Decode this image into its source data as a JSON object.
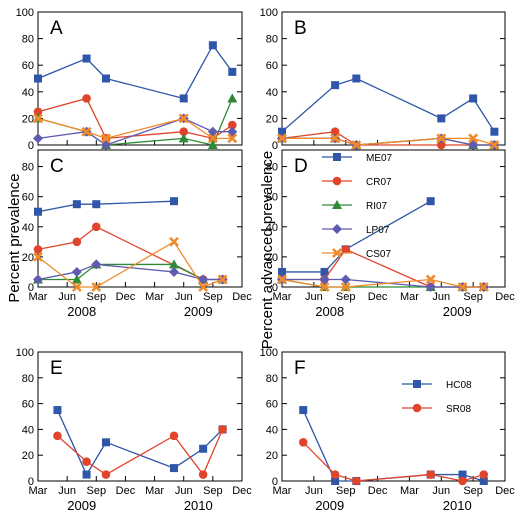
{
  "ylabels": {
    "left": "Percent prevalence",
    "right": "Percent advanced prevalence"
  },
  "colors": {
    "ME07": "#2f56a8",
    "CR07": "#e0452b",
    "RI07": "#2e8a35",
    "LP07": "#5e5bb0",
    "CS07": "#f08a2a",
    "HC08": "#2f56a8",
    "SR08": "#e0452b"
  },
  "chart_data": [
    {
      "panel": "A",
      "type": "line",
      "title": "A",
      "ylim": [
        0,
        100
      ],
      "yticks": [
        "0",
        "20",
        "40",
        "60",
        "80",
        "100"
      ],
      "xticks": [],
      "years": [],
      "series": [
        {
          "name": "ME07",
          "marker": "square",
          "points": [
            [
              "2007-03",
              50
            ],
            [
              "2007-08",
              65
            ],
            [
              "2007-10",
              50
            ],
            [
              "2008-06",
              35
            ],
            [
              "2008-09",
              75
            ],
            [
              "2008-11",
              55
            ]
          ]
        },
        {
          "name": "CR07",
          "marker": "circle",
          "points": [
            [
              "2007-03",
              25
            ],
            [
              "2007-08",
              35
            ],
            [
              "2007-10",
              5
            ],
            [
              "2008-06",
              10
            ],
            [
              "2008-09",
              5
            ],
            [
              "2008-11",
              15
            ]
          ]
        },
        {
          "name": "RI07",
          "marker": "triangle",
          "points": [
            [
              "2007-03",
              20
            ],
            [
              "2007-08",
              10
            ],
            [
              "2007-10",
              0
            ],
            [
              "2008-06",
              5
            ],
            [
              "2008-09",
              0
            ],
            [
              "2008-11",
              35
            ]
          ]
        },
        {
          "name": "LP07",
          "marker": "diamond",
          "points": [
            [
              "2007-03",
              5
            ],
            [
              "2007-08",
              10
            ],
            [
              "2007-10",
              0
            ],
            [
              "2008-06",
              20
            ],
            [
              "2008-09",
              10
            ],
            [
              "2008-11",
              10
            ]
          ]
        },
        {
          "name": "CS07",
          "marker": "cross",
          "points": [
            [
              "2007-03",
              20
            ],
            [
              "2007-08",
              10
            ],
            [
              "2007-10",
              5
            ],
            [
              "2008-06",
              20
            ],
            [
              "2008-09",
              5
            ],
            [
              "2008-11",
              5
            ]
          ]
        }
      ]
    },
    {
      "panel": "B",
      "type": "line",
      "title": "B",
      "ylim": [
        0,
        100
      ],
      "yticks": [
        "0",
        "20",
        "40",
        "60",
        "80",
        "100"
      ],
      "xticks": [],
      "years": [],
      "series": [
        {
          "name": "ME07",
          "marker": "square",
          "points": [
            [
              "2007-03",
              10
            ],
            [
              "2007-08",
              45
            ],
            [
              "2007-10",
              50
            ],
            [
              "2008-06",
              20
            ],
            [
              "2008-09",
              35
            ],
            [
              "2008-11",
              10
            ]
          ]
        },
        {
          "name": "CR07",
          "marker": "circle",
          "points": [
            [
              "2007-03",
              5
            ],
            [
              "2007-08",
              10
            ],
            [
              "2007-10",
              0
            ],
            [
              "2008-06",
              0
            ],
            [
              "2008-09",
              0
            ],
            [
              "2008-11",
              0
            ]
          ]
        },
        {
          "name": "RI07",
          "marker": "triangle",
          "points": [
            [
              "2007-03",
              5
            ],
            [
              "2007-08",
              5
            ],
            [
              "2007-10",
              0
            ],
            [
              "2008-06",
              5
            ],
            [
              "2008-09",
              0
            ],
            [
              "2008-11",
              0
            ]
          ]
        },
        {
          "name": "LP07",
          "marker": "diamond",
          "points": [
            [
              "2007-03",
              5
            ],
            [
              "2007-08",
              5
            ],
            [
              "2007-10",
              0
            ],
            [
              "2008-06",
              5
            ],
            [
              "2008-09",
              0
            ],
            [
              "2008-11",
              0
            ]
          ]
        },
        {
          "name": "CS07",
          "marker": "cross",
          "points": [
            [
              "2007-03",
              5
            ],
            [
              "2007-08",
              5
            ],
            [
              "2007-10",
              0
            ],
            [
              "2008-06",
              5
            ],
            [
              "2008-09",
              5
            ],
            [
              "2008-11",
              0
            ]
          ]
        }
      ]
    },
    {
      "panel": "C",
      "type": "line",
      "title": "C",
      "ylim": [
        0,
        100
      ],
      "yticks": [
        "0",
        "20",
        "40",
        "60",
        "80"
      ],
      "xticks": [
        "Mar",
        "Jun",
        "Sep",
        "Dec",
        "Mar",
        "Jun",
        "Sep",
        "Dec"
      ],
      "years": [
        "2008",
        "2009"
      ],
      "series": [
        {
          "name": "ME07",
          "marker": "square",
          "points": [
            [
              "2008-03",
              50
            ],
            [
              "2008-07",
              55
            ],
            [
              "2008-09",
              55
            ],
            [
              "2009-05",
              57
            ]
          ]
        },
        {
          "name": "CR07",
          "marker": "circle",
          "points": [
            [
              "2008-03",
              25
            ],
            [
              "2008-07",
              30
            ],
            [
              "2008-09",
              40
            ],
            [
              "2009-08",
              5
            ],
            [
              "2009-10",
              5
            ]
          ]
        },
        {
          "name": "RI07",
          "marker": "triangle",
          "points": [
            [
              "2008-03",
              5
            ],
            [
              "2008-07",
              5
            ],
            [
              "2008-09",
              15
            ],
            [
              "2009-05",
              15
            ],
            [
              "2009-08",
              5
            ],
            [
              "2009-10",
              5
            ]
          ]
        },
        {
          "name": "LP07",
          "marker": "diamond",
          "points": [
            [
              "2008-03",
              5
            ],
            [
              "2008-07",
              10
            ],
            [
              "2008-09",
              15
            ],
            [
              "2009-05",
              10
            ],
            [
              "2009-08",
              5
            ],
            [
              "2009-10",
              5
            ]
          ]
        },
        {
          "name": "CS07",
          "marker": "cross",
          "points": [
            [
              "2008-03",
              20
            ],
            [
              "2008-07",
              0
            ],
            [
              "2008-09",
              0
            ],
            [
              "2009-05",
              30
            ],
            [
              "2009-08",
              0
            ],
            [
              "2009-10",
              5
            ]
          ]
        }
      ]
    },
    {
      "panel": "D",
      "type": "line",
      "title": "D",
      "ylim": [
        0,
        100
      ],
      "yticks": [
        "0",
        "20",
        "40",
        "60",
        "80"
      ],
      "xticks": [
        "Mar",
        "Jun",
        "Sep",
        "Dec",
        "Mar",
        "Jun",
        "Sep",
        "Dec"
      ],
      "years": [
        "2008",
        "2009"
      ],
      "series": [
        {
          "name": "ME07",
          "marker": "square",
          "points": [
            [
              "2008-03",
              10
            ],
            [
              "2008-07",
              10
            ],
            [
              "2008-09",
              25
            ],
            [
              "2009-05",
              57
            ]
          ]
        },
        {
          "name": "CR07",
          "marker": "circle",
          "points": [
            [
              "2008-03",
              5
            ],
            [
              "2008-07",
              5
            ],
            [
              "2008-09",
              25
            ],
            [
              "2009-05",
              0
            ],
            [
              "2009-08",
              0
            ],
            [
              "2009-10",
              0
            ]
          ]
        },
        {
          "name": "RI07",
          "marker": "triangle",
          "points": [
            [
              "2008-03",
              5
            ],
            [
              "2008-07",
              0
            ],
            [
              "2008-09",
              0
            ],
            [
              "2009-05",
              0
            ],
            [
              "2009-08",
              0
            ],
            [
              "2009-10",
              0
            ]
          ]
        },
        {
          "name": "LP07",
          "marker": "diamond",
          "points": [
            [
              "2008-03",
              5
            ],
            [
              "2008-07",
              5
            ],
            [
              "2008-09",
              5
            ],
            [
              "2009-05",
              0
            ],
            [
              "2009-08",
              0
            ],
            [
              "2009-10",
              0
            ]
          ]
        },
        {
          "name": "CS07",
          "marker": "cross",
          "points": [
            [
              "2008-03",
              5
            ],
            [
              "2008-07",
              0
            ],
            [
              "2008-09",
              0
            ],
            [
              "2009-05",
              5
            ],
            [
              "2009-08",
              0
            ],
            [
              "2009-10",
              0
            ]
          ]
        }
      ]
    },
    {
      "panel": "E",
      "type": "line",
      "title": "E",
      "ylim": [
        0,
        100
      ],
      "yticks": [
        "0",
        "20",
        "40",
        "60",
        "80",
        "100"
      ],
      "xticks": [
        "Mar",
        "Jun",
        "Sep",
        "Dec",
        "Mar",
        "Jun",
        "Sep",
        "Dec"
      ],
      "years": [
        "2009",
        "2010"
      ],
      "series": [
        {
          "name": "HC08",
          "marker": "square",
          "points": [
            [
              "2009-05",
              55
            ],
            [
              "2009-08",
              5
            ],
            [
              "2009-10",
              30
            ],
            [
              "2010-05",
              10
            ],
            [
              "2010-08",
              25
            ],
            [
              "2010-10",
              40
            ]
          ]
        },
        {
          "name": "SR08",
          "marker": "circle",
          "points": [
            [
              "2009-05",
              35
            ],
            [
              "2009-08",
              15
            ],
            [
              "2009-10",
              5
            ],
            [
              "2010-05",
              35
            ],
            [
              "2010-08",
              5
            ],
            [
              "2010-10",
              40
            ]
          ]
        }
      ]
    },
    {
      "panel": "F",
      "type": "line",
      "title": "F",
      "ylim": [
        0,
        100
      ],
      "yticks": [
        "0",
        "20",
        "40",
        "60",
        "80",
        "100"
      ],
      "xticks": [
        "Mar",
        "Jun",
        "Sep",
        "Dec",
        "Mar",
        "Jun",
        "Sep",
        "Dec"
      ],
      "years": [
        "2009",
        "2010"
      ],
      "series": [
        {
          "name": "HC08",
          "marker": "square",
          "points": [
            [
              "2009-05",
              55
            ],
            [
              "2009-08",
              0
            ],
            [
              "2009-10",
              0
            ],
            [
              "2010-05",
              5
            ],
            [
              "2010-08",
              5
            ],
            [
              "2010-10",
              0
            ]
          ]
        },
        {
          "name": "SR08",
          "marker": "circle",
          "points": [
            [
              "2009-05",
              30
            ],
            [
              "2009-08",
              5
            ],
            [
              "2009-10",
              0
            ],
            [
              "2010-05",
              5
            ],
            [
              "2010-08",
              0
            ],
            [
              "2010-10",
              5
            ]
          ]
        }
      ]
    }
  ],
  "legends": [
    {
      "panel": "D",
      "entries": [
        "ME07",
        "CR07",
        "RI07",
        "LP07",
        "CS07"
      ]
    },
    {
      "panel": "F",
      "entries": [
        "HC08",
        "SR08"
      ]
    }
  ]
}
